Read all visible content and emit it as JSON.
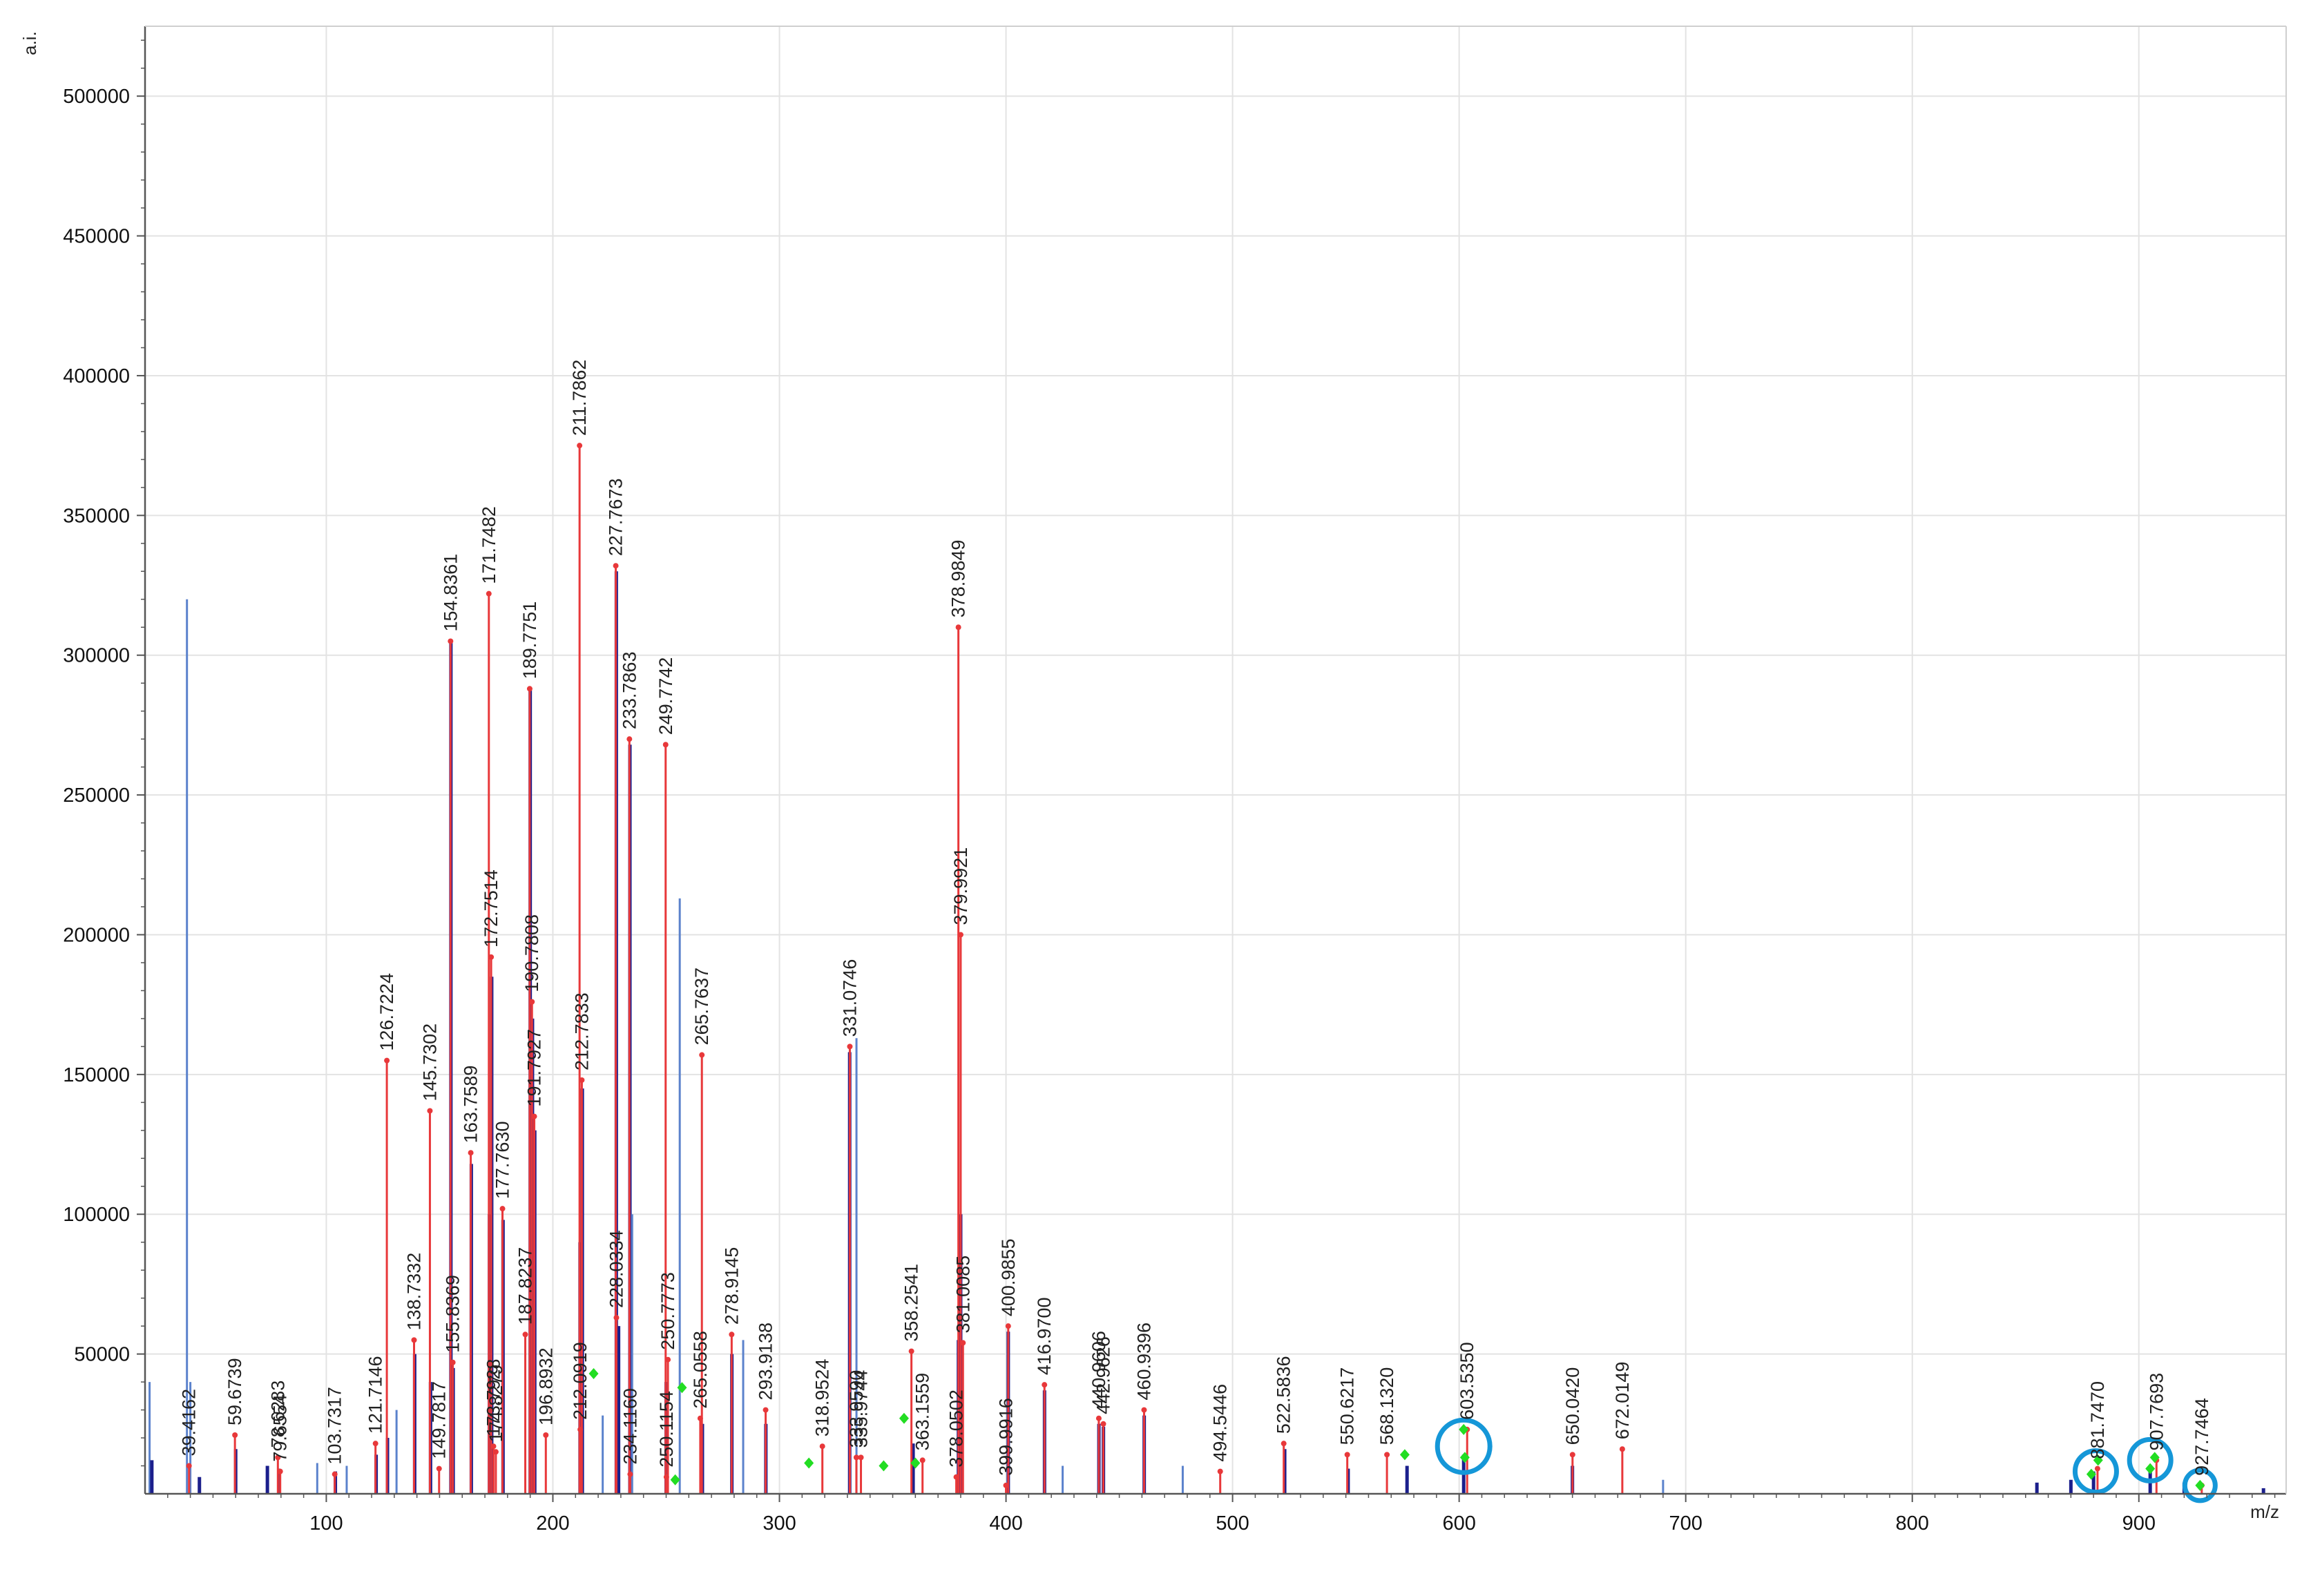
{
  "chart_data": {
    "type": "bar",
    "title": "",
    "xlabel": "m/z",
    "ylabel": "a.i.",
    "xlim": [
      20,
      965
    ],
    "ylim": [
      0,
      525000
    ],
    "grid": true,
    "x_ticks": [
      100,
      200,
      300,
      400,
      500,
      600,
      700,
      800,
      900
    ],
    "x_tick_labels": [
      "100",
      "200",
      "300",
      "400",
      "500",
      "600",
      "700",
      "800",
      "900"
    ],
    "y_ticks": [
      50000,
      100000,
      150000,
      200000,
      250000,
      300000,
      350000,
      400000,
      450000,
      500000
    ],
    "y_tick_labels": [
      "50000",
      "100000",
      "150000",
      "200000",
      "250000",
      "300000",
      "350000",
      "400000",
      "450000",
      "500000"
    ],
    "colors": {
      "labeled_peak": "#e8383a",
      "profile_light": "#5b82cc",
      "profile_dark": "#1b1f8c",
      "isotope_marker": "#22dd22",
      "highlight_circle": "#1597d8",
      "grid": "#e3e3e3",
      "axis": "#555555"
    },
    "labeled_peaks": [
      {
        "mz": 39.4162,
        "label": "39.4162",
        "intensity": 10000
      },
      {
        "mz": 59.6739,
        "label": "59.6739",
        "intensity": 21000
      },
      {
        "mz": 79.6554,
        "label": "79.6554",
        "intensity": 8000
      },
      {
        "mz": 78.6283,
        "label": "78.6283",
        "intensity": 13000
      },
      {
        "mz": 103.7317,
        "label": "103.7317",
        "intensity": 7000
      },
      {
        "mz": 121.7146,
        "label": "121.7146",
        "intensity": 18000
      },
      {
        "mz": 126.7224,
        "label": "126.7224",
        "intensity": 155000
      },
      {
        "mz": 138.7332,
        "label": "138.7332",
        "intensity": 55000
      },
      {
        "mz": 145.7302,
        "label": "145.7302",
        "intensity": 137000
      },
      {
        "mz": 149.7817,
        "label": "149.7817",
        "intensity": 9000
      },
      {
        "mz": 154.8361,
        "label": "154.8361",
        "intensity": 305000
      },
      {
        "mz": 155.8369,
        "label": "155.8369",
        "intensity": 47000
      },
      {
        "mz": 163.7589,
        "label": "163.7589",
        "intensity": 122000
      },
      {
        "mz": 171.7482,
        "label": "171.7482",
        "intensity": 322000
      },
      {
        "mz": 172.7514,
        "label": "172.7514",
        "intensity": 192000
      },
      {
        "mz": 173.7928,
        "label": "173.7928",
        "intensity": 17000
      },
      {
        "mz": 174.8279,
        "label": "174.8279",
        "intensity": 15000
      },
      {
        "mz": 177.763,
        "label": "177.7630",
        "intensity": 102000
      },
      {
        "mz": 187.8237,
        "label": "187.8237",
        "intensity": 57000
      },
      {
        "mz": 189.7751,
        "label": "189.7751",
        "intensity": 288000
      },
      {
        "mz": 190.7808,
        "label": "190.7808",
        "intensity": 176000
      },
      {
        "mz": 191.7927,
        "label": "191.7927",
        "intensity": 135000
      },
      {
        "mz": 196.8932,
        "label": "196.8932",
        "intensity": 21000
      },
      {
        "mz": 211.7862,
        "label": "211.7862",
        "intensity": 375000
      },
      {
        "mz": 212.0919,
        "label": "212.0919",
        "intensity": 23000
      },
      {
        "mz": 212.7833,
        "label": "212.7833",
        "intensity": 148000
      },
      {
        "mz": 227.7673,
        "label": "227.7673",
        "intensity": 332000
      },
      {
        "mz": 228.0334,
        "label": "228.0334",
        "intensity": 63000
      },
      {
        "mz": 233.7863,
        "label": "233.7863",
        "intensity": 270000
      },
      {
        "mz": 234.116,
        "label": "234.1160",
        "intensity": 7000
      },
      {
        "mz": 249.7742,
        "label": "249.7742",
        "intensity": 268000
      },
      {
        "mz": 250.1154,
        "label": "250.1154",
        "intensity": 6000
      },
      {
        "mz": 250.7773,
        "label": "250.7773",
        "intensity": 48000
      },
      {
        "mz": 265.0558,
        "label": "265.0558",
        "intensity": 27000
      },
      {
        "mz": 265.7637,
        "label": "265.7637",
        "intensity": 157000
      },
      {
        "mz": 278.9145,
        "label": "278.9145",
        "intensity": 57000
      },
      {
        "mz": 293.9138,
        "label": "293.9138",
        "intensity": 30000
      },
      {
        "mz": 318.9524,
        "label": "318.9524",
        "intensity": 17000
      },
      {
        "mz": 331.0746,
        "label": "331.0746",
        "intensity": 160000
      },
      {
        "mz": 333.959,
        "label": "333.9590",
        "intensity": 13000
      },
      {
        "mz": 335.9744,
        "label": "335.9744",
        "intensity": 13000
      },
      {
        "mz": 358.2541,
        "label": "358.2541",
        "intensity": 51000
      },
      {
        "mz": 363.1559,
        "label": "363.1559",
        "intensity": 12000
      },
      {
        "mz": 378.0502,
        "label": "378.0502",
        "intensity": 6000
      },
      {
        "mz": 378.9849,
        "label": "378.9849",
        "intensity": 310000
      },
      {
        "mz": 379.9921,
        "label": "379.9921",
        "intensity": 200000
      },
      {
        "mz": 381.0085,
        "label": "381.0085",
        "intensity": 54000
      },
      {
        "mz": 399.9916,
        "label": "399.9916",
        "intensity": 3000
      },
      {
        "mz": 400.9855,
        "label": "400.9855",
        "intensity": 60000
      },
      {
        "mz": 416.97,
        "label": "416.9700",
        "intensity": 39000
      },
      {
        "mz": 442.9626,
        "label": "442.9626",
        "intensity": 25000
      },
      {
        "mz": 440.9606,
        "label": "440.9606",
        "intensity": 27000
      },
      {
        "mz": 460.9396,
        "label": "460.9396",
        "intensity": 30000
      },
      {
        "mz": 494.5446,
        "label": "494.5446",
        "intensity": 8000
      },
      {
        "mz": 522.5836,
        "label": "522.5836",
        "intensity": 18000
      },
      {
        "mz": 550.6217,
        "label": "550.6217",
        "intensity": 14000
      },
      {
        "mz": 568.132,
        "label": "568.1320",
        "intensity": 14000
      },
      {
        "mz": 603.535,
        "label": "603.5350",
        "intensity": 23000
      },
      {
        "mz": 650.042,
        "label": "650.0420",
        "intensity": 14000
      },
      {
        "mz": 672.0149,
        "label": "672.0149",
        "intensity": 16000
      },
      {
        "mz": 881.747,
        "label": "881.7470",
        "intensity": 9000
      },
      {
        "mz": 907.7693,
        "label": "907.7693",
        "intensity": 12000
      },
      {
        "mz": 927.7464,
        "label": "927.7464",
        "intensity": 3000
      }
    ],
    "profile_peaks": [
      {
        "mz": 22,
        "intensity": 40000,
        "tone": "light"
      },
      {
        "mz": 23,
        "intensity": 12000,
        "tone": "dark"
      },
      {
        "mz": 38.5,
        "intensity": 320000,
        "tone": "light"
      },
      {
        "mz": 40,
        "intensity": 40000,
        "tone": "light"
      },
      {
        "mz": 44,
        "intensity": 6000,
        "tone": "dark"
      },
      {
        "mz": 60,
        "intensity": 16000,
        "tone": "dark"
      },
      {
        "mz": 74,
        "intensity": 10000,
        "tone": "dark"
      },
      {
        "mz": 79,
        "intensity": 9000,
        "tone": "dark"
      },
      {
        "mz": 96,
        "intensity": 11000,
        "tone": "light"
      },
      {
        "mz": 104,
        "intensity": 8000,
        "tone": "dark"
      },
      {
        "mz": 109,
        "intensity": 10000,
        "tone": "light"
      },
      {
        "mz": 122,
        "intensity": 14000,
        "tone": "dark"
      },
      {
        "mz": 127,
        "intensity": 20000,
        "tone": "dark"
      },
      {
        "mz": 131,
        "intensity": 30000,
        "tone": "light"
      },
      {
        "mz": 139,
        "intensity": 50000,
        "tone": "dark"
      },
      {
        "mz": 146,
        "intensity": 40000,
        "tone": "dark"
      },
      {
        "mz": 155,
        "intensity": 305000,
        "tone": "dark"
      },
      {
        "mz": 156,
        "intensity": 45000,
        "tone": "dark"
      },
      {
        "mz": 164,
        "intensity": 118000,
        "tone": "dark"
      },
      {
        "mz": 172,
        "intensity": 100000,
        "tone": "dark"
      },
      {
        "mz": 173,
        "intensity": 185000,
        "tone": "dark"
      },
      {
        "mz": 178,
        "intensity": 98000,
        "tone": "dark"
      },
      {
        "mz": 190,
        "intensity": 288000,
        "tone": "dark"
      },
      {
        "mz": 191,
        "intensity": 170000,
        "tone": "dark"
      },
      {
        "mz": 192,
        "intensity": 130000,
        "tone": "dark"
      },
      {
        "mz": 212,
        "intensity": 90000,
        "tone": "dark"
      },
      {
        "mz": 213,
        "intensity": 145000,
        "tone": "dark"
      },
      {
        "mz": 222,
        "intensity": 28000,
        "tone": "light"
      },
      {
        "mz": 228,
        "intensity": 330000,
        "tone": "dark"
      },
      {
        "mz": 229,
        "intensity": 60000,
        "tone": "dark"
      },
      {
        "mz": 234,
        "intensity": 268000,
        "tone": "dark"
      },
      {
        "mz": 235,
        "intensity": 100000,
        "tone": "light"
      },
      {
        "mz": 250,
        "intensity": 40000,
        "tone": "dark"
      },
      {
        "mz": 256,
        "intensity": 213000,
        "tone": "light"
      },
      {
        "mz": 266,
        "intensity": 25000,
        "tone": "dark"
      },
      {
        "mz": 279,
        "intensity": 50000,
        "tone": "dark"
      },
      {
        "mz": 284,
        "intensity": 55000,
        "tone": "light"
      },
      {
        "mz": 294,
        "intensity": 25000,
        "tone": "dark"
      },
      {
        "mz": 331,
        "intensity": 158000,
        "tone": "dark"
      },
      {
        "mz": 334,
        "intensity": 163000,
        "tone": "light"
      },
      {
        "mz": 359,
        "intensity": 18000,
        "tone": "dark"
      },
      {
        "mz": 379,
        "intensity": 55000,
        "tone": "dark"
      },
      {
        "mz": 380,
        "intensity": 100000,
        "tone": "dark"
      },
      {
        "mz": 401,
        "intensity": 58000,
        "tone": "dark"
      },
      {
        "mz": 417,
        "intensity": 37000,
        "tone": "dark"
      },
      {
        "mz": 425,
        "intensity": 10000,
        "tone": "light"
      },
      {
        "mz": 441,
        "intensity": 25000,
        "tone": "dark"
      },
      {
        "mz": 443,
        "intensity": 24000,
        "tone": "dark"
      },
      {
        "mz": 461,
        "intensity": 28000,
        "tone": "dark"
      },
      {
        "mz": 478,
        "intensity": 10000,
        "tone": "light"
      },
      {
        "mz": 523,
        "intensity": 16000,
        "tone": "dark"
      },
      {
        "mz": 551,
        "intensity": 9000,
        "tone": "dark"
      },
      {
        "mz": 577,
        "intensity": 10000,
        "tone": "dark"
      },
      {
        "mz": 602,
        "intensity": 14000,
        "tone": "dark"
      },
      {
        "mz": 650,
        "intensity": 10000,
        "tone": "dark"
      },
      {
        "mz": 690,
        "intensity": 5000,
        "tone": "light"
      },
      {
        "mz": 855,
        "intensity": 4000,
        "tone": "dark"
      },
      {
        "mz": 870,
        "intensity": 5000,
        "tone": "dark"
      },
      {
        "mz": 880,
        "intensity": 8000,
        "tone": "dark"
      },
      {
        "mz": 905,
        "intensity": 10000,
        "tone": "dark"
      },
      {
        "mz": 920,
        "intensity": 4000,
        "tone": "dark"
      },
      {
        "mz": 955,
        "intensity": 2000,
        "tone": "dark"
      }
    ],
    "isotope_markers": [
      {
        "mz": 218,
        "intensity": 43000
      },
      {
        "mz": 254,
        "intensity": 5000
      },
      {
        "mz": 257,
        "intensity": 38000
      },
      {
        "mz": 313,
        "intensity": 11000
      },
      {
        "mz": 346,
        "intensity": 10000
      },
      {
        "mz": 355,
        "intensity": 27000
      },
      {
        "mz": 360,
        "intensity": 11000
      },
      {
        "mz": 576,
        "intensity": 14000
      },
      {
        "mz": 602,
        "intensity": 23000
      },
      {
        "mz": 602.5,
        "intensity": 13000
      },
      {
        "mz": 879,
        "intensity": 7000
      },
      {
        "mz": 882,
        "intensity": 12000
      },
      {
        "mz": 905,
        "intensity": 9000
      },
      {
        "mz": 907,
        "intensity": 13000
      },
      {
        "mz": 927,
        "intensity": 3000
      }
    ],
    "highlight_circles": [
      {
        "mz": 602,
        "intensity": 17000
      },
      {
        "mz": 881,
        "intensity": 8000
      },
      {
        "mz": 905,
        "intensity": 12000
      },
      {
        "mz": 927,
        "intensity": 3000
      }
    ]
  }
}
